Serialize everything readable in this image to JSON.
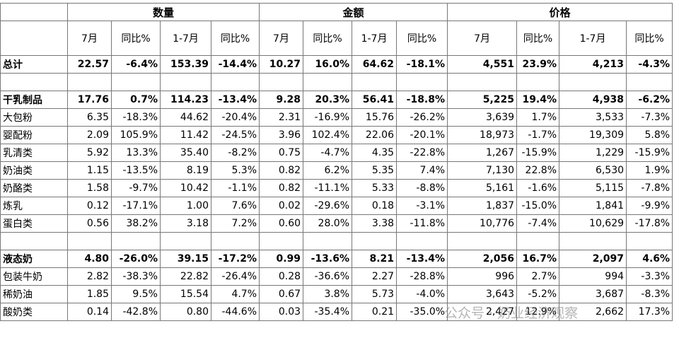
{
  "table": {
    "groups": [
      "数量",
      "金额",
      "价格"
    ],
    "subheaders": [
      "7月",
      "同比%",
      "1-7月",
      "同比%",
      "7月",
      "同比%",
      "1-7月",
      "同比%",
      "7月",
      "同比%",
      "1-7月",
      "同比%"
    ],
    "sections": [
      {
        "rows": [
          {
            "label": "总计",
            "values": [
              "22.57",
              "-6.4%",
              "153.39",
              "-14.4%",
              "10.27",
              "16.0%",
              "64.62",
              "-18.1%",
              "4,551",
              "23.9%",
              "4,213",
              "-4.3%"
            ]
          }
        ]
      },
      {
        "rows": [
          {
            "label": "干乳制品",
            "values": [
              "17.76",
              "0.7%",
              "114.23",
              "-13.4%",
              "9.28",
              "20.3%",
              "56.41",
              "-18.8%",
              "5,225",
              "19.4%",
              "4,938",
              "-6.2%"
            ]
          },
          {
            "label": "大包粉",
            "values": [
              "6.35",
              "-18.3%",
              "44.62",
              "-20.4%",
              "2.31",
              "-16.9%",
              "15.76",
              "-26.2%",
              "3,639",
              "1.7%",
              "3,533",
              "-7.3%"
            ]
          },
          {
            "label": "婴配粉",
            "values": [
              "2.09",
              "105.9%",
              "11.42",
              "-24.5%",
              "3.96",
              "102.4%",
              "22.06",
              "-20.1%",
              "18,973",
              "-1.7%",
              "19,309",
              "5.8%"
            ]
          },
          {
            "label": "乳清类",
            "values": [
              "5.92",
              "13.3%",
              "35.40",
              "-8.2%",
              "0.75",
              "-4.7%",
              "4.35",
              "-22.8%",
              "1,267",
              "-15.9%",
              "1,229",
              "-15.9%"
            ]
          },
          {
            "label": "奶油类",
            "values": [
              "1.15",
              "-13.5%",
              "8.19",
              "5.3%",
              "0.82",
              "6.2%",
              "5.35",
              "7.4%",
              "7,130",
              "22.8%",
              "6,530",
              "1.9%"
            ]
          },
          {
            "label": "奶酪类",
            "values": [
              "1.58",
              "-9.7%",
              "10.42",
              "-1.1%",
              "0.82",
              "-11.1%",
              "5.33",
              "-8.8%",
              "5,161",
              "-1.6%",
              "5,115",
              "-7.8%"
            ]
          },
          {
            "label": "炼乳",
            "values": [
              "0.12",
              "-17.1%",
              "1.00",
              "7.6%",
              "0.02",
              "-29.6%",
              "0.18",
              "-3.1%",
              "1,837",
              "-15.0%",
              "1,841",
              "-9.9%"
            ]
          },
          {
            "label": "蛋白类",
            "values": [
              "0.56",
              "38.2%",
              "3.18",
              "7.2%",
              "0.60",
              "28.0%",
              "3.38",
              "-11.8%",
              "10,776",
              "-7.4%",
              "10,629",
              "-17.8%"
            ]
          }
        ]
      },
      {
        "rows": [
          {
            "label": "液态奶",
            "values": [
              "4.80",
              "-26.0%",
              "39.15",
              "-17.2%",
              "0.99",
              "-13.6%",
              "8.21",
              "-13.4%",
              "2,056",
              "16.7%",
              "2,097",
              "4.6%"
            ]
          },
          {
            "label": "包装牛奶",
            "values": [
              "2.82",
              "-38.3%",
              "22.82",
              "-26.4%",
              "0.28",
              "-36.6%",
              "2.27",
              "-28.8%",
              "996",
              "2.7%",
              "994",
              "-3.3%"
            ]
          },
          {
            "label": "稀奶油",
            "values": [
              "1.85",
              "9.5%",
              "15.54",
              "4.7%",
              "0.67",
              "3.8%",
              "5.73",
              "-4.0%",
              "3,643",
              "-5.2%",
              "3,687",
              "-8.3%"
            ]
          },
          {
            "label": "酸奶类",
            "values": [
              "0.14",
              "-42.8%",
              "0.80",
              "-44.6%",
              "0.03",
              "-35.4%",
              "0.21",
              "-35.0%",
              "2,427",
              "12.9%",
              "2,662",
              "17.3%"
            ]
          }
        ]
      }
    ],
    "watermark": "公众号 · 奶业经济观察"
  }
}
